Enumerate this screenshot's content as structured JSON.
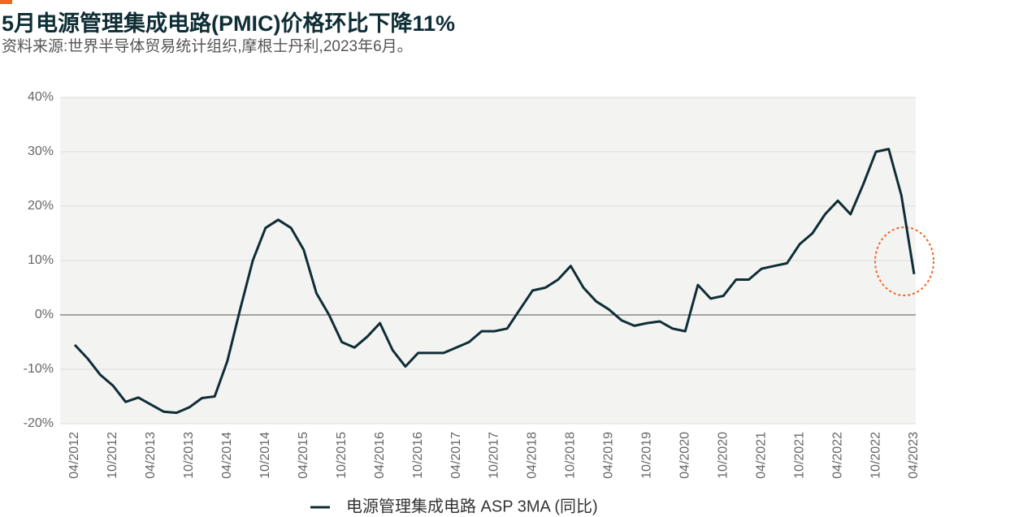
{
  "chart_data": {
    "type": "line",
    "title": "5月电源管理集成电路(PMIC)价格环比下降11%",
    "subtitle": "资料来源:世界半导体贸易统计组织,摩根士丹利,2023年6月。",
    "categories": [
      "04/2012",
      null,
      null,
      "10/2012",
      null,
      null,
      "04/2013",
      null,
      null,
      "10/2013",
      null,
      null,
      "04/2014",
      null,
      null,
      "10/2014",
      null,
      null,
      "04/2015",
      null,
      null,
      "10/2015",
      null,
      null,
      "04/2016",
      null,
      null,
      "10/2016",
      null,
      null,
      "04/2017",
      null,
      null,
      "10/2017",
      null,
      null,
      "04/2018",
      null,
      null,
      "10/2018",
      null,
      null,
      "04/2019",
      null,
      null,
      "10/2019",
      null,
      null,
      "04/2020",
      null,
      null,
      "10/2020",
      null,
      null,
      "04/2021",
      null,
      null,
      "10/2021",
      null,
      null,
      "04/2022",
      null,
      null,
      "10/2022",
      null,
      null,
      "04/2023"
    ],
    "series": [
      {
        "name": "电源管理集成电路 ASP 3MA (同比)",
        "color": "#0f2d35",
        "values": [
          -5.5,
          -8.0,
          -11.0,
          -13.0,
          -16.0,
          -15.2,
          -16.5,
          -17.8,
          -18.0,
          -17.0,
          -15.3,
          -15.0,
          -8.5,
          1.0,
          10.0,
          16.0,
          17.5,
          16.0,
          12.0,
          4.0,
          0.0,
          -5.0,
          -6.0,
          -4.0,
          -1.5,
          -6.5,
          -9.5,
          -7.0,
          -7.0,
          -7.0,
          -6.0,
          -5.0,
          -3.0,
          -3.0,
          -2.5,
          1.0,
          4.5,
          5.0,
          6.5,
          9.0,
          5.0,
          2.5,
          1.0,
          -1.0,
          -2.0,
          -1.5,
          -1.2,
          -2.5,
          -3.0,
          5.5,
          3.0,
          3.5,
          6.5,
          6.5,
          8.5,
          9.0,
          9.5,
          13.0,
          15.0,
          18.5,
          21.0,
          18.5,
          24.0,
          30.0,
          30.5,
          22.0,
          7.5
        ]
      }
    ],
    "ylim": [
      -20,
      40
    ],
    "yticks": [
      {
        "value": -20,
        "label": "-20%"
      },
      {
        "value": -10,
        "label": "-10%"
      },
      {
        "value": 0,
        "label": "0%"
      },
      {
        "value": 10,
        "label": "10%"
      },
      {
        "value": 20,
        "label": "20%"
      },
      {
        "value": 30,
        "label": "30%"
      },
      {
        "value": 40,
        "label": "40%"
      }
    ],
    "grid": true,
    "legend": "bottom"
  }
}
